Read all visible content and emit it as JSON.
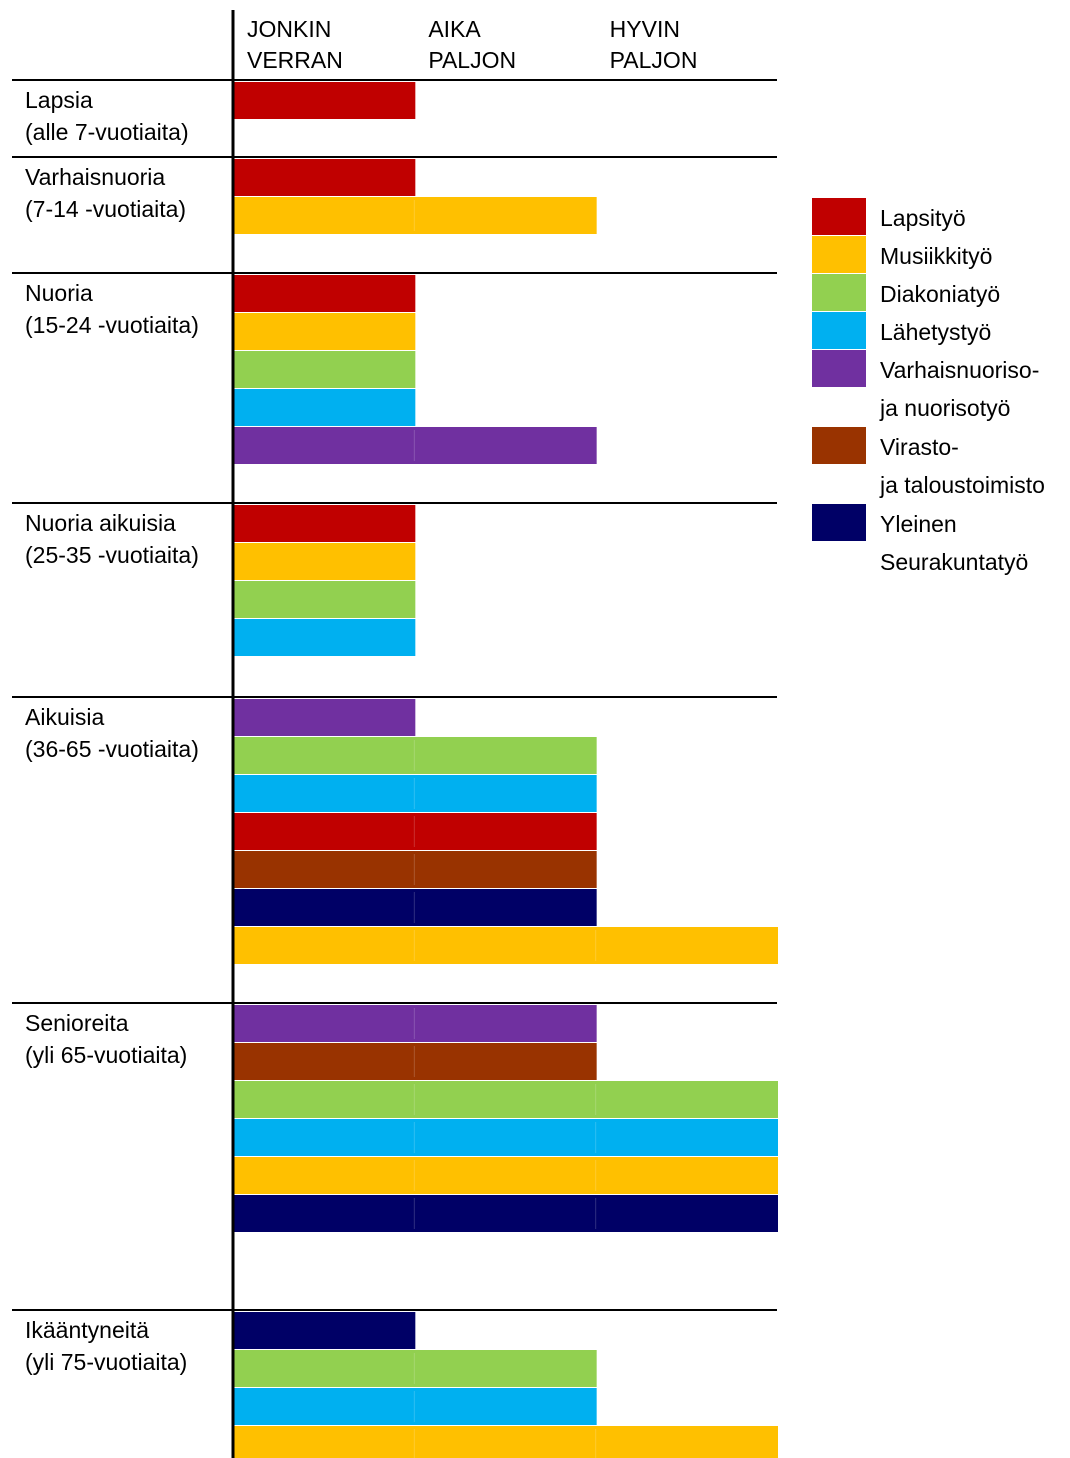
{
  "chart_data": {
    "type": "bar",
    "orientation": "horizontal",
    "xlabel": "",
    "ylabel": "",
    "x_categories": [
      "JONKIN VERRAN",
      "AIKA PALJON",
      "HYVIN PALJON"
    ],
    "x_category_lines": [
      [
        "JONKIN",
        "VERRAN"
      ],
      [
        "AIKA",
        "PALJON"
      ],
      [
        "HYVIN",
        "PALJON"
      ]
    ],
    "x_range": [
      0,
      3
    ],
    "legend_position": "right",
    "series": [
      {
        "key": "lapsi",
        "name": "Lapsityö",
        "name_lines": [
          "Lapsityö"
        ],
        "color": "#C00000"
      },
      {
        "key": "musiikki",
        "name": "Musiikkityö",
        "name_lines": [
          "Musiikkityö"
        ],
        "color": "#FFC000"
      },
      {
        "key": "diakonia",
        "name": "Diakoniatyö",
        "name_lines": [
          "Diakoniatyö"
        ],
        "color": "#92D050"
      },
      {
        "key": "lahetys",
        "name": "Lähetystyö",
        "name_lines": [
          "Lähetystyö"
        ],
        "color": "#00B0F0"
      },
      {
        "key": "nuoriso",
        "name": "Varhaisnuoriso- ja nuorisotyö",
        "name_lines": [
          "Varhaisnuoriso-",
          "ja nuorisotyö"
        ],
        "color": "#7030A0"
      },
      {
        "key": "virasto",
        "name": "Virasto- ja taloustoimisto",
        "name_lines": [
          "Virasto-",
          "ja taloustoimisto"
        ],
        "color": "#993300"
      },
      {
        "key": "yleinen",
        "name": "Yleinen Seurakuntatyö",
        "name_lines": [
          "Yleinen",
          "Seurakuntatyö"
        ],
        "color": "#000066"
      }
    ],
    "groups": [
      {
        "label_lines": [
          "Lapsia",
          "(alle 7-vuotiaita)"
        ],
        "bars": [
          {
            "series": "lapsi",
            "value": 1
          }
        ]
      },
      {
        "label_lines": [
          "Varhaisnuoria",
          "(7-14 -vuotiaita)"
        ],
        "bars": [
          {
            "series": "lapsi",
            "value": 1
          },
          {
            "series": "musiikki",
            "value": 2
          }
        ]
      },
      {
        "label_lines": [
          "Nuoria",
          "(15-24 -vuotiaita)"
        ],
        "bars": [
          {
            "series": "lapsi",
            "value": 1
          },
          {
            "series": "musiikki",
            "value": 1
          },
          {
            "series": "diakonia",
            "value": 1
          },
          {
            "series": "lahetys",
            "value": 1
          },
          {
            "series": "nuoriso",
            "value": 2
          }
        ]
      },
      {
        "label_lines": [
          "Nuoria aikuisia",
          "(25-35 -vuotiaita)"
        ],
        "bars": [
          {
            "series": "lapsi",
            "value": 1
          },
          {
            "series": "musiikki",
            "value": 1
          },
          {
            "series": "diakonia",
            "value": 1
          },
          {
            "series": "lahetys",
            "value": 1
          }
        ]
      },
      {
        "label_lines": [
          "Aikuisia",
          "(36-65 -vuotiaita)"
        ],
        "bars": [
          {
            "series": "nuoriso",
            "value": 1
          },
          {
            "series": "diakonia",
            "value": 2
          },
          {
            "series": "lahetys",
            "value": 2
          },
          {
            "series": "lapsi",
            "value": 2
          },
          {
            "series": "virasto",
            "value": 2
          },
          {
            "series": "yleinen",
            "value": 2
          },
          {
            "series": "musiikki",
            "value": 3
          }
        ]
      },
      {
        "label_lines": [
          "Senioreita",
          "(yli 65-vuotiaita)"
        ],
        "bars": [
          {
            "series": "nuoriso",
            "value": 2
          },
          {
            "series": "virasto",
            "value": 2
          },
          {
            "series": "diakonia",
            "value": 3
          },
          {
            "series": "lahetys",
            "value": 3
          },
          {
            "series": "musiikki",
            "value": 3
          },
          {
            "series": "yleinen",
            "value": 3
          }
        ]
      },
      {
        "label_lines": [
          "Ikääntyneitä",
          "(yli 75-vuotiaita)"
        ],
        "bars": [
          {
            "series": "yleinen",
            "value": 1
          },
          {
            "series": "diakonia",
            "value": 2
          },
          {
            "series": "lahetys",
            "value": 2
          },
          {
            "series": "musiikki",
            "value": 3
          }
        ]
      }
    ]
  }
}
